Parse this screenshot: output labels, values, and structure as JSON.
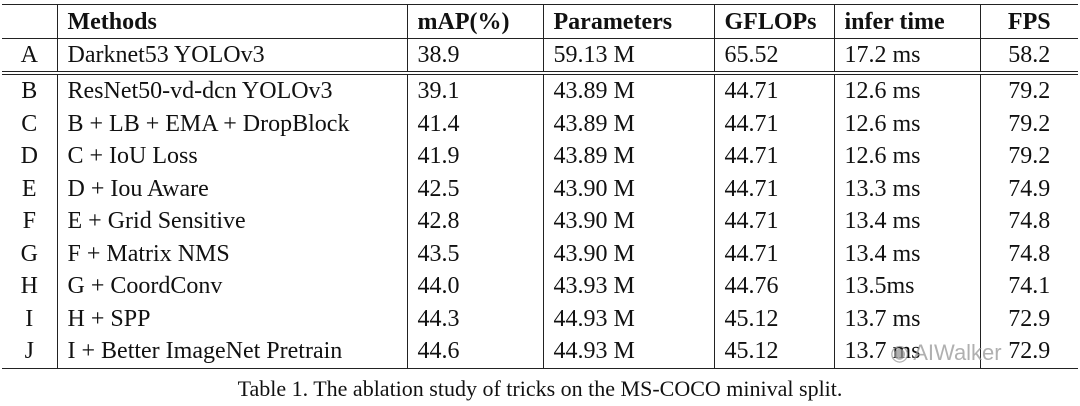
{
  "table": {
    "headers": [
      "",
      "Methods",
      "mAP(%)",
      "Parameters",
      "GFLOPs",
      "infer time",
      "FPS"
    ],
    "rows": [
      {
        "id": "A",
        "method": "Darknet53 YOLOv3",
        "map": "38.9",
        "params": "59.13 M",
        "gflops": "65.52",
        "infer": "17.2 ms",
        "fps": "58.2"
      },
      {
        "id": "B",
        "method": "ResNet50-vd-dcn YOLOv3",
        "map": "39.1",
        "params": "43.89 M",
        "gflops": "44.71",
        "infer": "12.6 ms",
        "fps": "79.2"
      },
      {
        "id": "C",
        "method": "B + LB + EMA + DropBlock",
        "map": "41.4",
        "params": "43.89 M",
        "gflops": "44.71",
        "infer": "12.6 ms",
        "fps": "79.2"
      },
      {
        "id": "D",
        "method": "C + IoU Loss",
        "map": "41.9",
        "params": "43.89 M",
        "gflops": "44.71",
        "infer": "12.6 ms",
        "fps": "79.2"
      },
      {
        "id": "E",
        "method": "D + Iou Aware",
        "map": "42.5",
        "params": "43.90 M",
        "gflops": "44.71",
        "infer": "13.3 ms",
        "fps": "74.9"
      },
      {
        "id": "F",
        "method": "E + Grid Sensitive",
        "map": "42.8",
        "params": "43.90 M",
        "gflops": "44.71",
        "infer": "13.4 ms",
        "fps": "74.8"
      },
      {
        "id": "G",
        "method": "F + Matrix NMS",
        "map": "43.5",
        "params": "43.90 M",
        "gflops": "44.71",
        "infer": "13.4 ms",
        "fps": "74.8"
      },
      {
        "id": "H",
        "method": "G + CoordConv",
        "map": "44.0",
        "params": "43.93 M",
        "gflops": "44.76",
        "infer": "13.5ms",
        "fps": "74.1"
      },
      {
        "id": "I",
        "method": "H + SPP",
        "map": "44.3",
        "params": "44.93 M",
        "gflops": "45.12",
        "infer": "13.7 ms",
        "fps": "72.9"
      },
      {
        "id": "J",
        "method": "I + Better ImageNet Pretrain",
        "map": "44.6",
        "params": "44.93 M",
        "gflops": "45.12",
        "infer": "13.7 ms",
        "fps": "72.9"
      }
    ]
  },
  "caption": "Table 1. The ablation study of tricks on the MS-COCO minival split.",
  "watermark": "AIWalker"
}
